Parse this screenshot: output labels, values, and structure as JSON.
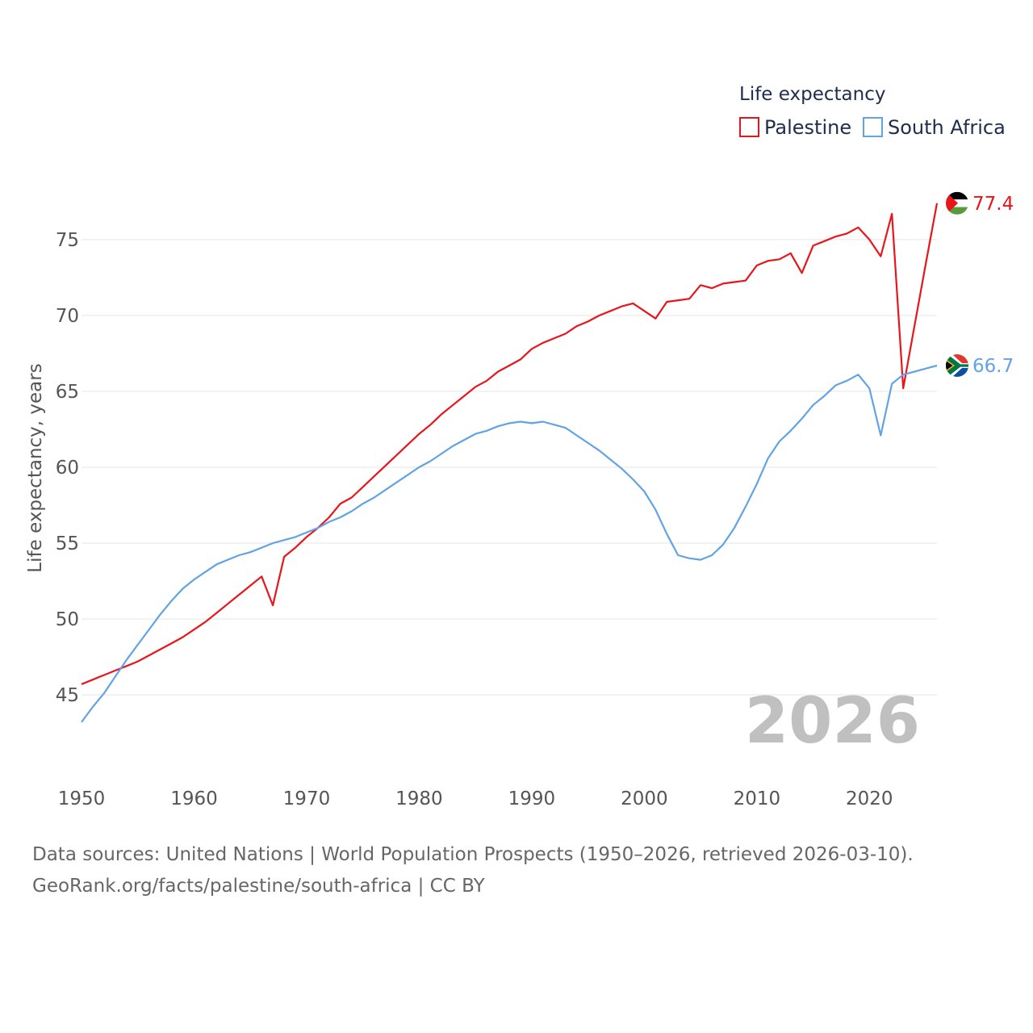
{
  "chart_data": {
    "type": "line",
    "title": "Life expectancy",
    "ylabel": "Life expectancy, years",
    "xlabel": "",
    "xlim": [
      1950,
      2026
    ],
    "ylim": [
      42.5,
      77.6
    ],
    "yticks": [
      45,
      50,
      55,
      60,
      65,
      70,
      75
    ],
    "xticks": [
      1950,
      1960,
      1970,
      1980,
      1990,
      2000,
      2010,
      2020
    ],
    "grid": true,
    "legend_position": "top-right",
    "current_year_label": "2026",
    "series": [
      {
        "name": "Palestine",
        "color": "#e8151b",
        "end_label": "77.4",
        "flag": "palestine-flag",
        "x": [
          1950,
          1951,
          1952,
          1953,
          1954,
          1955,
          1956,
          1957,
          1958,
          1959,
          1960,
          1961,
          1962,
          1963,
          1964,
          1965,
          1966,
          1967,
          1968,
          1969,
          1970,
          1971,
          1972,
          1973,
          1974,
          1975,
          1976,
          1977,
          1978,
          1979,
          1980,
          1981,
          1982,
          1983,
          1984,
          1985,
          1986,
          1987,
          1988,
          1989,
          1990,
          1991,
          1992,
          1993,
          1994,
          1995,
          1996,
          1997,
          1998,
          1999,
          2000,
          2001,
          2002,
          2003,
          2004,
          2005,
          2006,
          2007,
          2008,
          2009,
          2010,
          2011,
          2012,
          2013,
          2014,
          2015,
          2016,
          2017,
          2018,
          2019,
          2020,
          2021,
          2022,
          2023,
          2024,
          2025,
          2026
        ],
        "values": [
          45.7,
          46.0,
          46.3,
          46.6,
          46.9,
          47.2,
          47.6,
          48.0,
          48.4,
          48.8,
          49.3,
          49.8,
          50.4,
          51.0,
          51.6,
          52.2,
          52.8,
          50.9,
          54.1,
          54.7,
          55.4,
          56.0,
          56.7,
          57.6,
          58.0,
          58.7,
          59.4,
          60.1,
          60.8,
          61.5,
          62.2,
          62.8,
          63.5,
          64.1,
          64.7,
          65.3,
          65.7,
          66.3,
          66.7,
          67.1,
          67.8,
          68.2,
          68.5,
          68.8,
          69.3,
          69.6,
          70.0,
          70.3,
          70.6,
          70.8,
          70.3,
          69.8,
          70.9,
          71.0,
          71.1,
          72.0,
          71.8,
          72.1,
          72.2,
          72.3,
          73.3,
          73.6,
          73.7,
          74.1,
          72.8,
          74.6,
          74.9,
          75.2,
          75.4,
          75.8,
          75.0,
          73.9,
          76.7,
          65.2,
          69.3,
          73.4,
          77.4
        ]
      },
      {
        "name": "South Africa",
        "color": "#62a3e4",
        "end_label": "66.7",
        "flag": "south-africa-flag",
        "x": [
          1950,
          1951,
          1952,
          1953,
          1954,
          1955,
          1956,
          1957,
          1958,
          1959,
          1960,
          1961,
          1962,
          1963,
          1964,
          1965,
          1966,
          1967,
          1968,
          1969,
          1970,
          1971,
          1972,
          1973,
          1974,
          1975,
          1976,
          1977,
          1978,
          1979,
          1980,
          1981,
          1982,
          1983,
          1984,
          1985,
          1986,
          1987,
          1988,
          1989,
          1990,
          1991,
          1992,
          1993,
          1994,
          1995,
          1996,
          1997,
          1998,
          1999,
          2000,
          2001,
          2002,
          2003,
          2004,
          2005,
          2006,
          2007,
          2008,
          2009,
          2010,
          2011,
          2012,
          2013,
          2014,
          2015,
          2016,
          2017,
          2018,
          2019,
          2020,
          2021,
          2022,
          2023,
          2024,
          2025,
          2026
        ],
        "values": [
          43.2,
          44.2,
          45.1,
          46.2,
          47.3,
          48.3,
          49.3,
          50.3,
          51.2,
          52.0,
          52.6,
          53.1,
          53.6,
          53.9,
          54.2,
          54.4,
          54.7,
          55.0,
          55.2,
          55.4,
          55.7,
          56.0,
          56.4,
          56.7,
          57.1,
          57.6,
          58.0,
          58.5,
          59.0,
          59.5,
          60.0,
          60.4,
          60.9,
          61.4,
          61.8,
          62.2,
          62.4,
          62.7,
          62.9,
          63.0,
          62.9,
          63.0,
          62.8,
          62.6,
          62.1,
          61.6,
          61.1,
          60.5,
          59.9,
          59.2,
          58.4,
          57.2,
          55.6,
          54.2,
          54.0,
          53.9,
          54.2,
          54.9,
          56.0,
          57.4,
          58.9,
          60.6,
          61.7,
          62.4,
          63.2,
          64.1,
          64.7,
          65.4,
          65.7,
          66.1,
          65.2,
          62.1,
          65.5,
          66.1,
          66.3,
          66.5,
          66.7
        ]
      }
    ]
  },
  "footer": {
    "line1": "Data sources: United Nations | World Population Prospects (1950–2026, retrieved 2026-03-10).",
    "line2": "GeoRank.org/facts/palestine/south-africa | CC BY"
  }
}
